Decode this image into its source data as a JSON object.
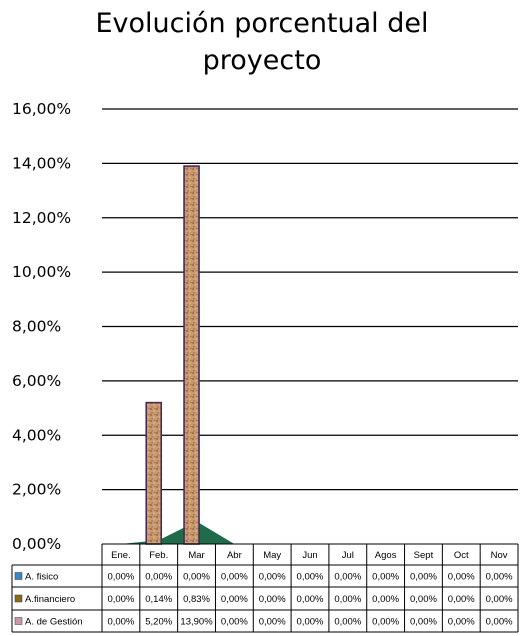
{
  "chart_data": {
    "type": "bar",
    "title_lines": [
      "Evolución porcentual del",
      "proyecto"
    ],
    "categories": [
      "Ene.",
      "Feb.",
      "Mar",
      "Abr",
      "May",
      "Jun",
      "Jul",
      "Agos",
      "Sept",
      "Oct",
      "Nov"
    ],
    "ylim": [
      0,
      16
    ],
    "yticks": [
      0,
      2,
      4,
      6,
      8,
      10,
      12,
      14,
      16
    ],
    "ytick_labels": [
      "0,00%",
      "2,00%",
      "4,00%",
      "6,00%",
      "8,00%",
      "10,00%",
      "12,00%",
      "14,00%",
      "16,00%"
    ],
    "grid": true,
    "legend": "data-table-left",
    "series": [
      {
        "name": "A. fisico",
        "type": "area",
        "color": "#2e8b57",
        "values": [
          0,
          0,
          0,
          0,
          0,
          0,
          0,
          0,
          0,
          0,
          0
        ],
        "cells": [
          "0,00%",
          "0,00%",
          "0,00%",
          "0,00%",
          "0,00%",
          "0,00%",
          "0,00%",
          "0,00%",
          "0,00%",
          "0,00%",
          "0,00%"
        ]
      },
      {
        "name": "A.financiero",
        "type": "area",
        "color": "#1f6b4a",
        "values": [
          0,
          0.14,
          0.83,
          0,
          0,
          0,
          0,
          0,
          0,
          0,
          0
        ],
        "cells": [
          "0,00%",
          "0,14%",
          "0,83%",
          "0,00%",
          "0,00%",
          "0,00%",
          "0,00%",
          "0,00%",
          "0,00%",
          "0,00%",
          "0,00%"
        ]
      },
      {
        "name": "A. de Gestión",
        "type": "bar",
        "color": "#c8956b",
        "values": [
          0,
          5.2,
          13.9,
          0,
          0,
          0,
          0,
          0,
          0,
          0,
          0
        ],
        "cells": [
          "0,00%",
          "5,20%",
          "13,90%",
          "0,00%",
          "0,00%",
          "0,00%",
          "0,00%",
          "0,00%",
          "0,00%",
          "0,00%",
          "0,00%"
        ]
      }
    ]
  }
}
